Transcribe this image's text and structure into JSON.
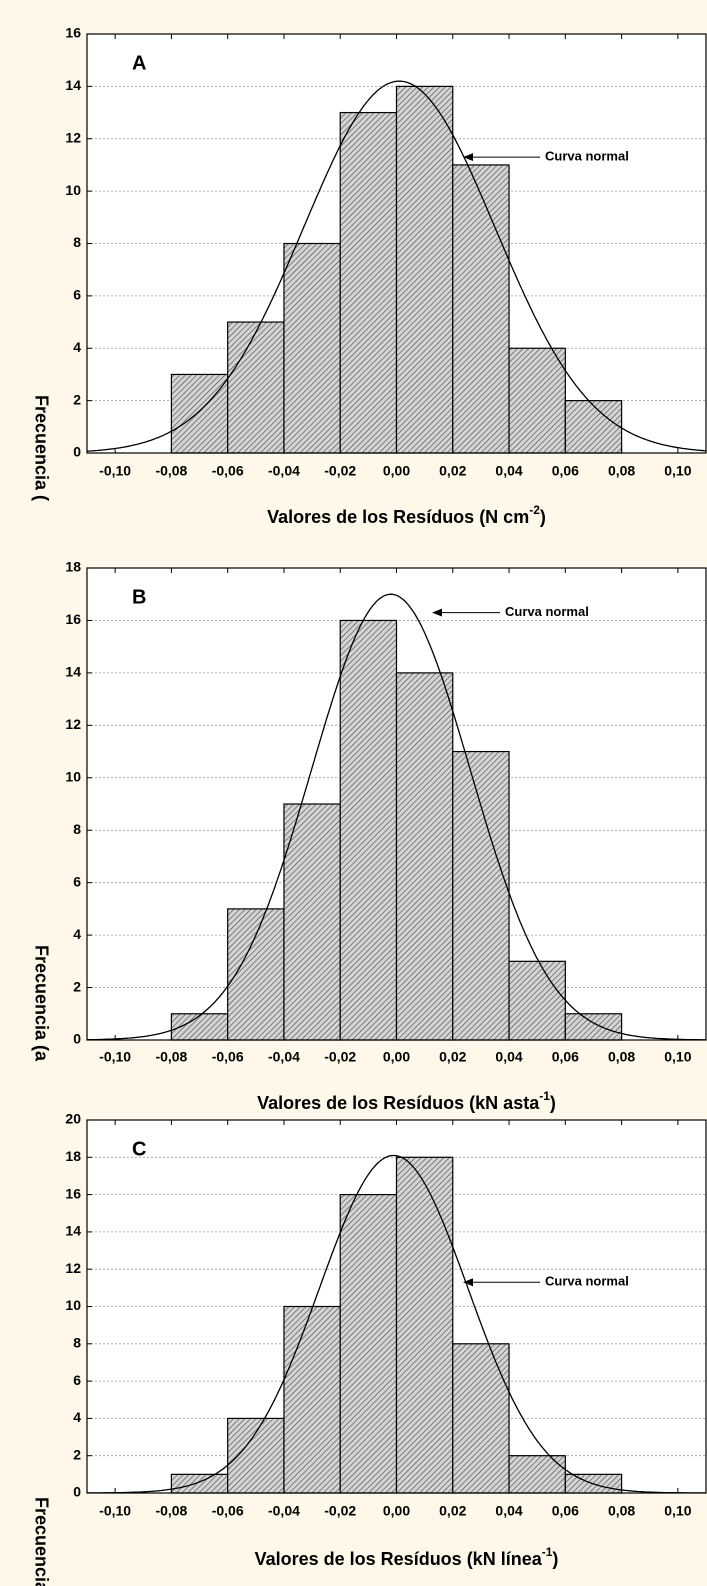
{
  "chart_data": [
    {
      "type": "histogram",
      "label": "A",
      "bins": [
        -0.08,
        -0.06,
        -0.04,
        -0.02,
        0.0,
        0.02,
        0.04,
        0.06,
        0.08
      ],
      "values": [
        3,
        5,
        8,
        13,
        14,
        11,
        4,
        2
      ],
      "curve": {
        "name": "Curva normal",
        "mean": 0.001,
        "sd": 0.034,
        "peak": 14.2
      },
      "xlim": [
        -0.11,
        0.11
      ],
      "xticks": [
        {
          "value": -0.1,
          "label": "-0,10"
        },
        {
          "value": -0.08,
          "label": "-0,08"
        },
        {
          "value": -0.06,
          "label": "-0,06"
        },
        {
          "value": -0.04,
          "label": "-0,04"
        },
        {
          "value": -0.02,
          "label": "-0,02"
        },
        {
          "value": 0,
          "label": "0,00"
        },
        {
          "value": 0.02,
          "label": "0,02"
        },
        {
          "value": 0.04,
          "label": "0,04"
        },
        {
          "value": 0.06,
          "label": "0,06"
        },
        {
          "value": 0.08,
          "label": "0,08"
        },
        {
          "value": 0.1,
          "label": "0,10"
        }
      ],
      "ylim": [
        0,
        16
      ],
      "yticks": [
        0,
        2,
        4,
        6,
        8,
        10,
        12,
        14,
        16
      ],
      "xlabel": {
        "text": "Valores de los Resíduos (N cm",
        "sup": "-2",
        "end": ")"
      },
      "ylabel": "Frecuencia (",
      "grid": true
    },
    {
      "type": "histogram",
      "label": "B",
      "bins": [
        -0.08,
        -0.06,
        -0.04,
        -0.02,
        0.0,
        0.02,
        0.04,
        0.06,
        0.08
      ],
      "values": [
        1,
        5,
        9,
        16,
        14,
        11,
        3,
        1
      ],
      "curve": {
        "name": "Curva normal",
        "mean": -0.002,
        "sd": 0.0282,
        "peak": 17.0
      },
      "xlim": [
        -0.11,
        0.11
      ],
      "xticks": [
        {
          "value": -0.1,
          "label": "-0,10"
        },
        {
          "value": -0.08,
          "label": "-0,08"
        },
        {
          "value": -0.06,
          "label": "-0,06"
        },
        {
          "value": -0.04,
          "label": "-0,04"
        },
        {
          "value": -0.02,
          "label": "-0,02"
        },
        {
          "value": 0,
          "label": "0,00"
        },
        {
          "value": 0.02,
          "label": "0,02"
        },
        {
          "value": 0.04,
          "label": "0,04"
        },
        {
          "value": 0.06,
          "label": "0,06"
        },
        {
          "value": 0.08,
          "label": "0,08"
        },
        {
          "value": 0.1,
          "label": "0,10"
        }
      ],
      "ylim": [
        0,
        18
      ],
      "yticks": [
        0,
        2,
        4,
        6,
        8,
        10,
        12,
        14,
        16,
        18
      ],
      "xlabel": {
        "text": "Valores de los Resíduos (kN asta",
        "sup": "-1",
        "end": ")"
      },
      "ylabel": "Frecuencia (a",
      "grid": true
    },
    {
      "type": "histogram",
      "label": "C",
      "bins": [
        -0.08,
        -0.06,
        -0.04,
        -0.02,
        0.0,
        0.02,
        0.04,
        0.06,
        0.08
      ],
      "values": [
        1,
        4,
        10,
        16,
        18,
        8,
        2,
        1
      ],
      "curve": {
        "name": "Curva normal",
        "mean": -0.001,
        "sd": 0.0264,
        "peak": 18.1
      },
      "xlim": [
        -0.11,
        0.11
      ],
      "xticks": [
        {
          "value": -0.1,
          "label": "-0,10"
        },
        {
          "value": -0.08,
          "label": "-0,08"
        },
        {
          "value": -0.06,
          "label": "-0,06"
        },
        {
          "value": -0.04,
          "label": "-0,04"
        },
        {
          "value": -0.02,
          "label": "-0,02"
        },
        {
          "value": 0,
          "label": "0,00"
        },
        {
          "value": 0.02,
          "label": "0,02"
        },
        {
          "value": 0.04,
          "label": "0,04"
        },
        {
          "value": 0.06,
          "label": "0,06"
        },
        {
          "value": 0.08,
          "label": "0,08"
        },
        {
          "value": 0.1,
          "label": "0,10"
        }
      ],
      "ylim": [
        0,
        20
      ],
      "yticks": [
        0,
        2,
        4,
        6,
        8,
        10,
        12,
        14,
        16,
        18,
        20
      ],
      "xlabel": {
        "text": "Valores de los Resíduos (kN línea",
        "sup": "-1",
        "end": ")"
      },
      "ylabel": "Frecuencia",
      "grid": true
    }
  ]
}
